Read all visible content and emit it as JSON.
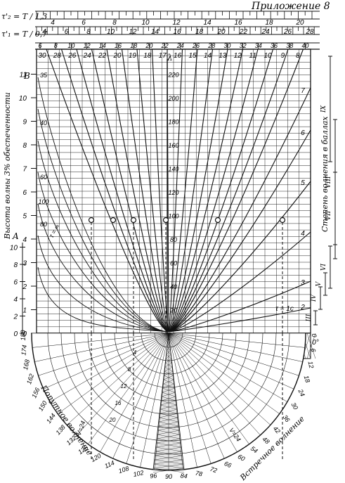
{
  "header": {
    "appendix_title": "Приложение 8"
  },
  "scales": {
    "tau2_label": "τ'₂ = T / 1,3",
    "tau2_ticks": [
      "4",
      "6",
      "8",
      "10",
      "12",
      "14",
      "16",
      "18",
      "20"
    ],
    "tau1_label": "τ'₁ = T / 0,7",
    "tau1_ticks": [
      "4",
      "6",
      "8",
      "10",
      "12",
      "14",
      "16",
      "18",
      "20",
      "22",
      "24",
      "26",
      "28"
    ],
    "period_ticks": [
      "6",
      "8",
      "10",
      "12",
      "14",
      "16",
      "18",
      "20",
      "22",
      "24",
      "26",
      "28",
      "30",
      "32",
      "34",
      "36",
      "38",
      "40"
    ]
  },
  "axes": {
    "left_title": "Высота волны 3% обеспеченности",
    "B_label": "B",
    "B_ticks": [
      "0",
      "1",
      "2",
      "3",
      "4",
      "5",
      "6",
      "7",
      "8",
      "9",
      "10",
      "11"
    ],
    "A_label": "A",
    "A_ticks": [
      "0",
      "2",
      "4",
      "6",
      "8",
      "10"
    ],
    "lambda_label": "λ",
    "lambda_ticks": [
      "20",
      "40",
      "60",
      "80",
      "100",
      "120",
      "140",
      "160",
      "180",
      "200",
      "220"
    ],
    "right_title": "Степень волнения в баллах",
    "grade_ticks": [
      "III",
      "IV",
      "V",
      "VI",
      "VII",
      "VIII",
      "IX"
    ]
  },
  "curves": {
    "tau_top_labels": [
      "30",
      "28",
      "26",
      "24",
      "22",
      "20",
      "19",
      "18",
      "17",
      "16",
      "15",
      "14",
      "13",
      "12",
      "11",
      "10",
      "9",
      "8"
    ],
    "tau_right_labels": [
      "7",
      "6",
      "5",
      "4",
      "3",
      "2"
    ],
    "tau_last_label": "τ = 1c",
    "tau_infinity_label": "τ = ∞",
    "left_side_labels": [
      "35",
      "40",
      "60",
      "100",
      "80"
    ]
  },
  "bottom": {
    "following_label": "Попутное волнение",
    "head_label": "Встречное волнение",
    "angle_left_ticks": [
      "180",
      "174",
      "168",
      "162",
      "156",
      "150",
      "144",
      "138",
      "132",
      "126",
      "120",
      "114",
      "108",
      "102",
      "96"
    ],
    "angle_center_ticks": [
      "90",
      "84"
    ],
    "angle_right_ticks": [
      "78",
      "72",
      "66",
      "60",
      "54",
      "48",
      "42",
      "36",
      "30",
      "24",
      "18",
      "12",
      "6",
      "0"
    ],
    "zero_angle_label": "0°",
    "speed_left_label": "V=24",
    "speed_right_label": "V=24",
    "inner_speed_labels": [
      "20",
      "16",
      "12",
      "8",
      "4"
    ]
  }
}
